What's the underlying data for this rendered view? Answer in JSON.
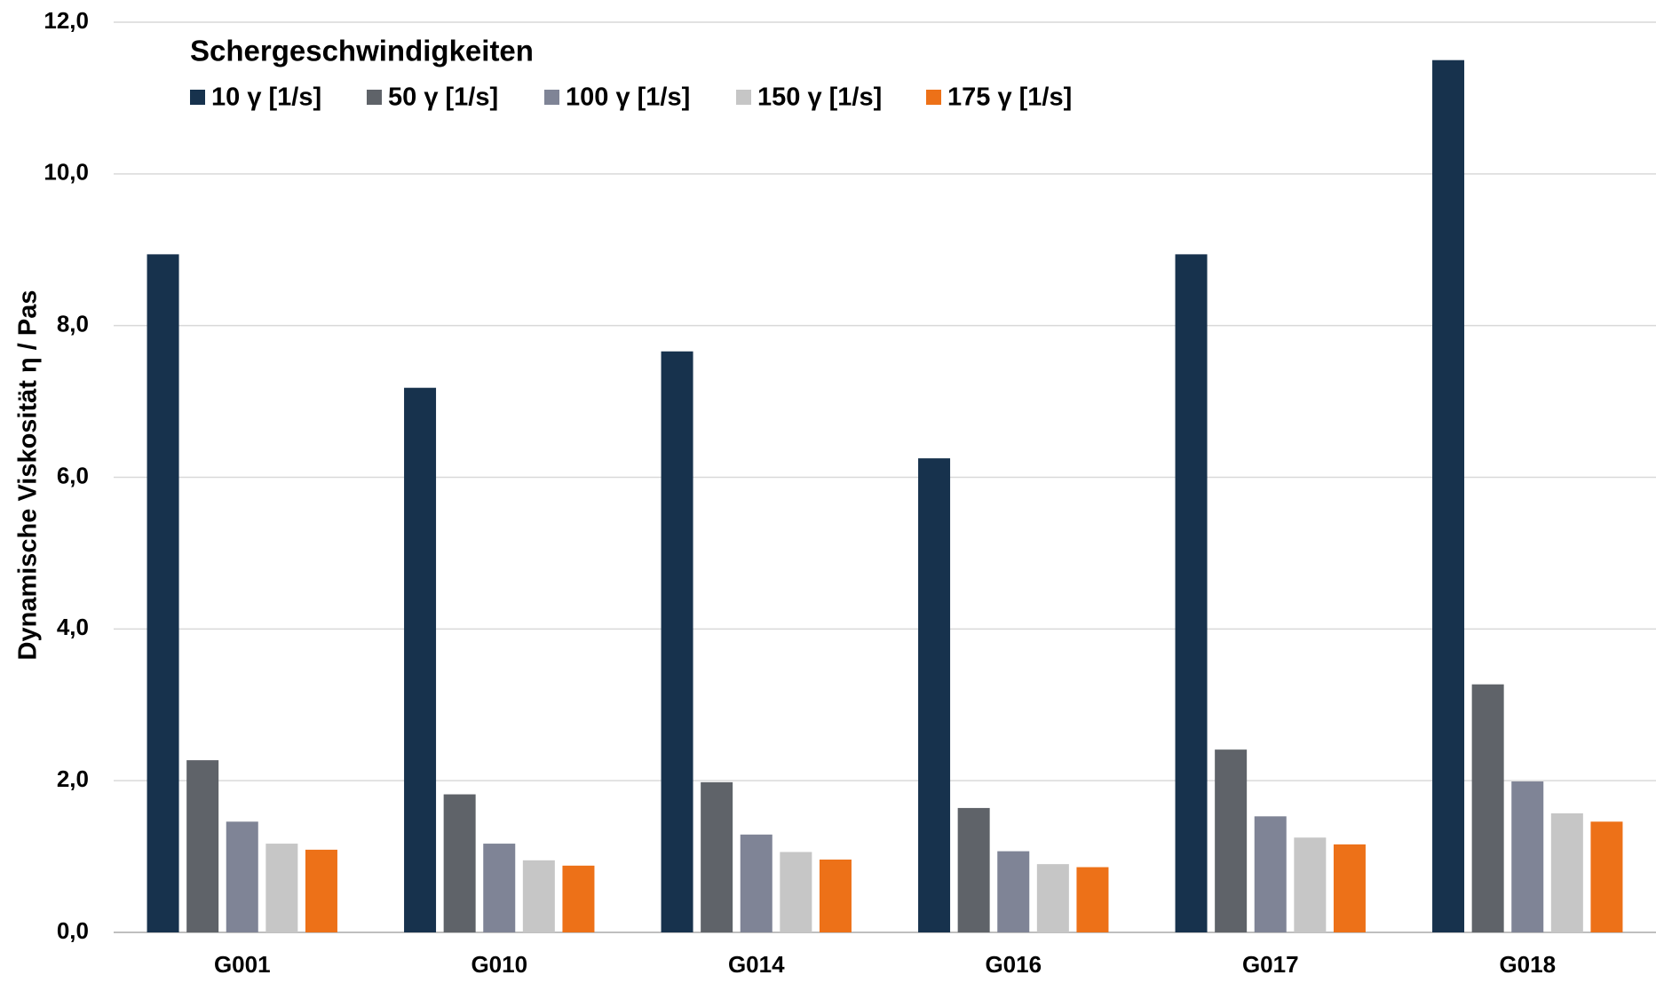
{
  "chart_data": {
    "type": "bar",
    "legend_title": "Schergeschwindigkeiten",
    "ylabel": "Dynamische Viskosität η / Pas",
    "categories": [
      "G001",
      "G010",
      "G014",
      "G016",
      "G017",
      "G018"
    ],
    "series": [
      {
        "name": "10 γ [1/s]",
        "color": "#17324d",
        "values": [
          8.94,
          7.18,
          7.66,
          6.25,
          8.94,
          11.5
        ]
      },
      {
        "name": "50 γ [1/s]",
        "color": "#5f6369",
        "values": [
          2.27,
          1.82,
          1.98,
          1.64,
          2.41,
          3.27
        ]
      },
      {
        "name": "100 γ [1/s]",
        "color": "#7f8496",
        "values": [
          1.46,
          1.17,
          1.29,
          1.07,
          1.53,
          1.99
        ]
      },
      {
        "name": "150 γ [1/s]",
        "color": "#c6c6c6",
        "values": [
          1.17,
          0.95,
          1.06,
          0.9,
          1.25,
          1.57
        ]
      },
      {
        "name": "175 γ [1/s]",
        "color": "#ed7118",
        "values": [
          1.09,
          0.88,
          0.96,
          0.86,
          1.16,
          1.46
        ]
      }
    ],
    "ylim": [
      0,
      12
    ],
    "yticks": [
      {
        "value": 0,
        "label": "0,0"
      },
      {
        "value": 2,
        "label": "2,0"
      },
      {
        "value": 4,
        "label": "4,0"
      },
      {
        "value": 6,
        "label": "6,0"
      },
      {
        "value": 8,
        "label": "8,0"
      },
      {
        "value": 10,
        "label": "10,0"
      },
      {
        "value": 12,
        "label": "12,0"
      }
    ],
    "grid": true
  }
}
